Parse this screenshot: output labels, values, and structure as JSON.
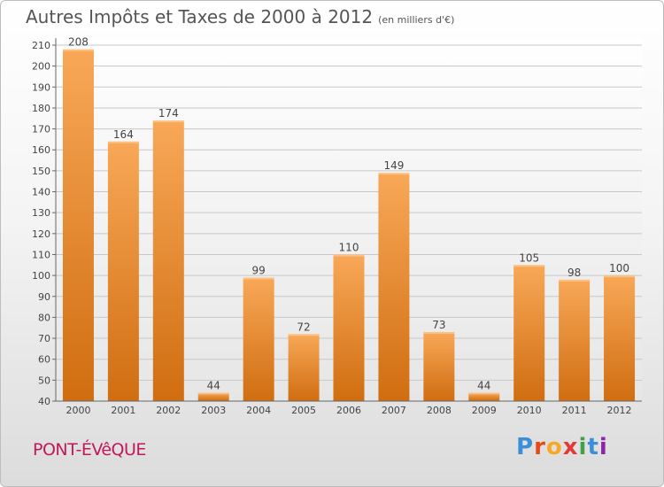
{
  "title": {
    "main": "Autres Impôts et Taxes de 2000 à 2012",
    "unit": "(en milliers d'€)"
  },
  "commune": "PONT-ÉVêQUE",
  "logo": {
    "text": "Proxiti",
    "letters": [
      {
        "ch": "P",
        "color": "#3b8fd8"
      },
      {
        "ch": "r",
        "color": "#e64a19"
      },
      {
        "ch": "o",
        "color": "#f9a825"
      },
      {
        "ch": "x",
        "color": "#e53935"
      },
      {
        "ch": "i",
        "color": "#43a047"
      },
      {
        "ch": "t",
        "color": "#3b8fd8"
      },
      {
        "ch": "i",
        "color": "#8e24aa"
      }
    ]
  },
  "chart_data": {
    "type": "bar",
    "title": "Autres Impôts et Taxes de 2000 à 2012",
    "subtitle": "(en milliers d'€)",
    "categories": [
      "2000",
      "2001",
      "2002",
      "2003",
      "2004",
      "2005",
      "2006",
      "2007",
      "2008",
      "2009",
      "2010",
      "2011",
      "2012"
    ],
    "values": [
      208,
      164,
      174,
      44,
      99,
      72,
      110,
      149,
      73,
      44,
      105,
      98,
      100
    ],
    "ylim": [
      40,
      210
    ],
    "yticks": [
      40,
      50,
      60,
      70,
      80,
      90,
      100,
      110,
      120,
      130,
      140,
      150,
      160,
      170,
      180,
      190,
      200,
      210
    ],
    "grid": "horizontal",
    "bar_color_top": "#f8a858",
    "bar_color_bottom": "#d06d10"
  }
}
